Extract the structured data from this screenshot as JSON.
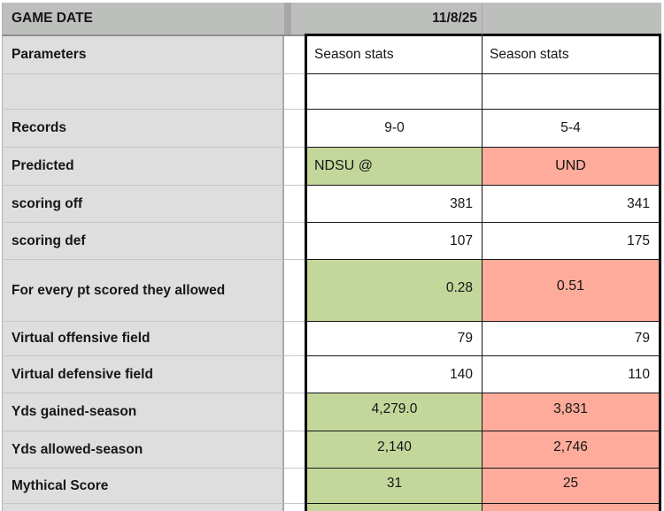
{
  "sheet": {
    "title_cell": "GAME DATE",
    "game_date": "11/8/25",
    "columns": {
      "label_header": "GAME DATE",
      "team1": "NDSU",
      "team2": "UND"
    },
    "rows": [
      {
        "label": "Parameters",
        "col1": "Season stats",
        "col2": "Season stats"
      },
      {
        "label": "",
        "col1": "",
        "col2": ""
      },
      {
        "label": "Records",
        "col1": "9-0",
        "col2": "5-4"
      },
      {
        "label": "Predicted",
        "col1": "NDSU @",
        "col2": "UND"
      },
      {
        "label": "scoring off",
        "col1": "381",
        "col2": "341"
      },
      {
        "label": "scoring def",
        "col1": "107",
        "col2": "175"
      },
      {
        "label": "For every pt scored they allowed",
        "col1": "0.28",
        "col2": "0.51"
      },
      {
        "label": "Virtual offensive field",
        "col1": "79",
        "col2": "79"
      },
      {
        "label": "Virtual defensive field",
        "col1": "140",
        "col2": "110"
      },
      {
        "label": "Yds gained-season",
        "col1": "4,279.0",
        "col2": "3,831"
      },
      {
        "label": "Yds allowed-season",
        "col1": "2,140",
        "col2": "2,746"
      },
      {
        "label": "Mythical Score",
        "col1": "31",
        "col2": "25"
      }
    ],
    "colors": {
      "favorable_green": "#c4d79b",
      "unfavorable_salmon": "#ffab9b",
      "header_gray": "#bdbfbd",
      "label_gray": "#dedede"
    }
  }
}
